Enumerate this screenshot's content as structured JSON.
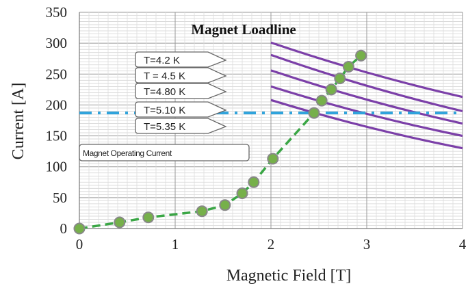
{
  "chart_data": {
    "type": "scatter",
    "title": "Magnet Loadline",
    "xlabel": "Magnetic Field [T]",
    "ylabel": "Current [A]",
    "xlim": [
      0,
      4
    ],
    "ylim": [
      0,
      350
    ],
    "xticks": [
      0,
      1,
      2,
      3,
      4
    ],
    "yticks": [
      0,
      50,
      100,
      150,
      200,
      250,
      300,
      350
    ],
    "grid": true,
    "colors": {
      "points": "#76b04a",
      "point_edge": "#888888",
      "loadline": "#3aa645",
      "operating_current": "#2fa3dc",
      "temperature_curves": "#7b3fa8"
    },
    "series": [
      {
        "name": "Magnet Loadline",
        "style": "dashed-line-with-markers",
        "x": [
          0,
          0.42,
          0.72,
          1.28,
          1.52,
          1.7,
          1.82,
          2.02,
          2.45,
          2.53,
          2.63,
          2.72,
          2.81,
          2.94
        ],
        "y": [
          0,
          10,
          18,
          28,
          38,
          57,
          75,
          113,
          187,
          207,
          225,
          243,
          262,
          280
        ]
      },
      {
        "name": "Magnet Operating Current",
        "style": "dash-dot-horizontal",
        "x": [
          0,
          4
        ],
        "y": [
          187,
          187
        ]
      },
      {
        "name": "T=4.2 K",
        "style": "solid",
        "x": [
          2,
          4
        ],
        "y": [
          301,
          213
        ]
      },
      {
        "name": "T = 4.5 K",
        "style": "solid",
        "x": [
          2,
          4
        ],
        "y": [
          281,
          190
        ]
      },
      {
        "name": "T=4.80 K",
        "style": "solid",
        "x": [
          2,
          4
        ],
        "y": [
          256,
          170
        ]
      },
      {
        "name": "T=5.10 K",
        "style": "solid",
        "x": [
          2,
          4
        ],
        "y": [
          230,
          150
        ]
      },
      {
        "name": "T=5.35 K",
        "style": "solid",
        "x": [
          2,
          4
        ],
        "y": [
          208,
          130
        ]
      }
    ],
    "annotations": [
      {
        "text": "T=4.2 K",
        "points_to": "T=4.2 K"
      },
      {
        "text": "T = 4.5 K",
        "points_to": "T = 4.5 K"
      },
      {
        "text": "T=4.80 K",
        "points_to": "T=4.80 K"
      },
      {
        "text": "T=5.10 K",
        "points_to": "T=5.10 K"
      },
      {
        "text": "T=5.35 K",
        "points_to": "T=5.35 K"
      },
      {
        "text": "Magnet Operating Current",
        "points_to": "Magnet Operating Current"
      }
    ]
  }
}
